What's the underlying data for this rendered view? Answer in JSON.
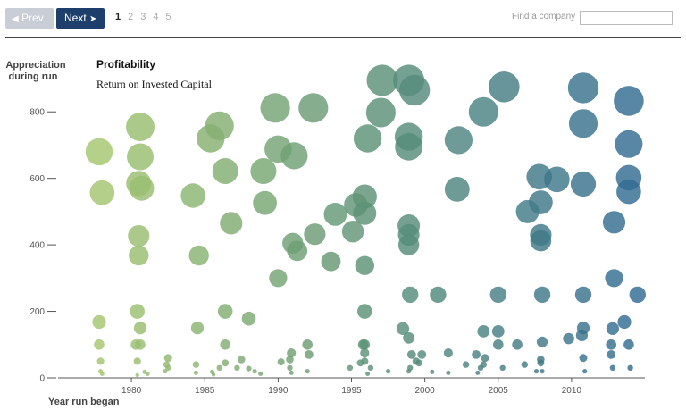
{
  "pagination": {
    "prev_label": "Prev",
    "next_label": "Next",
    "prev_icon": "triangle-left-icon",
    "next_icon": "arrow-right-icon",
    "pages": [
      "1",
      "2",
      "3",
      "4",
      "5"
    ],
    "current_page": "1"
  },
  "search": {
    "label": "Find a company",
    "value": "",
    "placeholder": ""
  },
  "colors": {
    "prev_bg": "#c9ced6",
    "next_bg": "#1e3f6b",
    "bubble_early": "#a7c86f",
    "bubble_mid": "#5d9276",
    "bubble_late": "#2f6a93"
  },
  "chart_data": {
    "type": "scatter",
    "title": "Profitability",
    "subtitle": "Return on Invested Capital",
    "xlabel": "Year run began",
    "ylabel_lines": [
      "Appreciation",
      "during run"
    ],
    "xlim": [
      1975,
      2015
    ],
    "ylim": [
      0,
      900
    ],
    "x_ticks": [
      1980,
      1985,
      1990,
      1995,
      2000,
      2005,
      2010
    ],
    "y_ticks": [
      0,
      200,
      400,
      600,
      800
    ],
    "grid": false,
    "size_encodes": "appreciation during run",
    "points": [
      {
        "x": 1977.8,
        "y": 680
      },
      {
        "x": 1978.0,
        "y": 557
      },
      {
        "x": 1980.6,
        "y": 755
      },
      {
        "x": 1980.6,
        "y": 665
      },
      {
        "x": 1980.5,
        "y": 585
      },
      {
        "x": 1980.7,
        "y": 570
      },
      {
        "x": 1980.5,
        "y": 427
      },
      {
        "x": 1980.5,
        "y": 368
      },
      {
        "x": 1984.2,
        "y": 548
      },
      {
        "x": 1984.6,
        "y": 368
      },
      {
        "x": 1985.4,
        "y": 720
      },
      {
        "x": 1986.0,
        "y": 758
      },
      {
        "x": 1986.4,
        "y": 622
      },
      {
        "x": 1986.8,
        "y": 465
      },
      {
        "x": 1989.0,
        "y": 622
      },
      {
        "x": 1989.1,
        "y": 526
      },
      {
        "x": 1989.8,
        "y": 812
      },
      {
        "x": 1990.0,
        "y": 688
      },
      {
        "x": 1991.1,
        "y": 668
      },
      {
        "x": 1992.4,
        "y": 812
      },
      {
        "x": 1990.0,
        "y": 300
      },
      {
        "x": 1991.0,
        "y": 405
      },
      {
        "x": 1991.3,
        "y": 382
      },
      {
        "x": 1992.5,
        "y": 432
      },
      {
        "x": 1993.6,
        "y": 350
      },
      {
        "x": 1993.9,
        "y": 492
      },
      {
        "x": 1995.1,
        "y": 440
      },
      {
        "x": 1995.3,
        "y": 520
      },
      {
        "x": 1995.9,
        "y": 545
      },
      {
        "x": 1995.9,
        "y": 495
      },
      {
        "x": 1995.9,
        "y": 338
      },
      {
        "x": 1996.1,
        "y": 720
      },
      {
        "x": 1997.1,
        "y": 895
      },
      {
        "x": 1997.0,
        "y": 798
      },
      {
        "x": 1998.9,
        "y": 895
      },
      {
        "x": 1999.3,
        "y": 865
      },
      {
        "x": 1998.9,
        "y": 725
      },
      {
        "x": 1998.9,
        "y": 695
      },
      {
        "x": 1998.9,
        "y": 458
      },
      {
        "x": 1998.9,
        "y": 430
      },
      {
        "x": 1998.9,
        "y": 400
      },
      {
        "x": 1999.0,
        "y": 250
      },
      {
        "x": 2000.9,
        "y": 250
      },
      {
        "x": 2002.3,
        "y": 715
      },
      {
        "x": 2002.2,
        "y": 567
      },
      {
        "x": 2004.0,
        "y": 800
      },
      {
        "x": 2005.4,
        "y": 875
      },
      {
        "x": 2005.0,
        "y": 250
      },
      {
        "x": 2007.0,
        "y": 500
      },
      {
        "x": 2007.8,
        "y": 605
      },
      {
        "x": 2007.9,
        "y": 528
      },
      {
        "x": 2007.9,
        "y": 430
      },
      {
        "x": 2007.9,
        "y": 412
      },
      {
        "x": 2008.0,
        "y": 250
      },
      {
        "x": 2009.0,
        "y": 597
      },
      {
        "x": 2010.8,
        "y": 872
      },
      {
        "x": 2010.8,
        "y": 765
      },
      {
        "x": 2010.8,
        "y": 583
      },
      {
        "x": 2010.8,
        "y": 250
      },
      {
        "x": 2012.9,
        "y": 468
      },
      {
        "x": 2012.9,
        "y": 300
      },
      {
        "x": 2013.9,
        "y": 833
      },
      {
        "x": 2013.9,
        "y": 703
      },
      {
        "x": 2013.9,
        "y": 602
      },
      {
        "x": 2013.9,
        "y": 560
      },
      {
        "x": 2014.5,
        "y": 250
      },
      {
        "x": 1977.8,
        "y": 168
      },
      {
        "x": 1977.8,
        "y": 100
      },
      {
        "x": 1977.9,
        "y": 50
      },
      {
        "x": 1977.9,
        "y": 20
      },
      {
        "x": 1978.0,
        "y": 12
      },
      {
        "x": 1980.4,
        "y": 200
      },
      {
        "x": 1980.6,
        "y": 150
      },
      {
        "x": 1980.3,
        "y": 100
      },
      {
        "x": 1980.6,
        "y": 100
      },
      {
        "x": 1980.4,
        "y": 50
      },
      {
        "x": 1980.9,
        "y": 18
      },
      {
        "x": 1981.1,
        "y": 12
      },
      {
        "x": 1980.4,
        "y": 8
      },
      {
        "x": 1982.5,
        "y": 60
      },
      {
        "x": 1982.4,
        "y": 40
      },
      {
        "x": 1982.5,
        "y": 30
      },
      {
        "x": 1982.3,
        "y": 20
      },
      {
        "x": 1984.5,
        "y": 150
      },
      {
        "x": 1984.4,
        "y": 40
      },
      {
        "x": 1984.4,
        "y": 15
      },
      {
        "x": 1985.5,
        "y": 18
      },
      {
        "x": 1986.0,
        "y": 30
      },
      {
        "x": 1985.6,
        "y": 10
      },
      {
        "x": 1986.4,
        "y": 200
      },
      {
        "x": 1986.4,
        "y": 100
      },
      {
        "x": 1986.4,
        "y": 45
      },
      {
        "x": 1987.2,
        "y": 30
      },
      {
        "x": 1987.5,
        "y": 55
      },
      {
        "x": 1988.0,
        "y": 28
      },
      {
        "x": 1988.4,
        "y": 20
      },
      {
        "x": 1988.8,
        "y": 12
      },
      {
        "x": 1988.0,
        "y": 178
      },
      {
        "x": 1990.2,
        "y": 48
      },
      {
        "x": 1990.8,
        "y": 55
      },
      {
        "x": 1990.9,
        "y": 75
      },
      {
        "x": 1990.8,
        "y": 30
      },
      {
        "x": 1990.9,
        "y": 15
      },
      {
        "x": 1992.0,
        "y": 100
      },
      {
        "x": 1992.1,
        "y": 70
      },
      {
        "x": 1992.0,
        "y": 20
      },
      {
        "x": 1994.9,
        "y": 30
      },
      {
        "x": 1995.8,
        "y": 100
      },
      {
        "x": 1995.9,
        "y": 100
      },
      {
        "x": 1995.9,
        "y": 75
      },
      {
        "x": 1995.9,
        "y": 50
      },
      {
        "x": 1995.6,
        "y": 45
      },
      {
        "x": 1995.9,
        "y": 200
      },
      {
        "x": 1996.3,
        "y": 30
      },
      {
        "x": 1996.1,
        "y": 12
      },
      {
        "x": 1997.5,
        "y": 20
      },
      {
        "x": 1998.5,
        "y": 148
      },
      {
        "x": 1998.9,
        "y": 120
      },
      {
        "x": 1999.1,
        "y": 70
      },
      {
        "x": 1999.4,
        "y": 50
      },
      {
        "x": 1999.6,
        "y": 45
      },
      {
        "x": 1999.0,
        "y": 30
      },
      {
        "x": 1998.9,
        "y": 20
      },
      {
        "x": 1999.8,
        "y": 70
      },
      {
        "x": 2000.5,
        "y": 18
      },
      {
        "x": 2001.6,
        "y": 75
      },
      {
        "x": 2001.6,
        "y": 15
      },
      {
        "x": 2002.8,
        "y": 40
      },
      {
        "x": 2003.5,
        "y": 70
      },
      {
        "x": 2003.8,
        "y": 30
      },
      {
        "x": 2003.6,
        "y": 15
      },
      {
        "x": 2004.0,
        "y": 140
      },
      {
        "x": 2004.1,
        "y": 60
      },
      {
        "x": 2004.0,
        "y": 40
      },
      {
        "x": 2005.0,
        "y": 140
      },
      {
        "x": 2005.0,
        "y": 100
      },
      {
        "x": 2005.3,
        "y": 30
      },
      {
        "x": 2006.3,
        "y": 100
      },
      {
        "x": 2006.8,
        "y": 40
      },
      {
        "x": 2007.6,
        "y": 20
      },
      {
        "x": 2008.0,
        "y": 108
      },
      {
        "x": 2007.9,
        "y": 55
      },
      {
        "x": 2007.9,
        "y": 45
      },
      {
        "x": 2008.0,
        "y": 20
      },
      {
        "x": 2009.8,
        "y": 118
      },
      {
        "x": 2010.8,
        "y": 150
      },
      {
        "x": 2010.7,
        "y": 128
      },
      {
        "x": 2010.8,
        "y": 60
      },
      {
        "x": 2010.9,
        "y": 20
      },
      {
        "x": 2012.8,
        "y": 148
      },
      {
        "x": 2012.7,
        "y": 100
      },
      {
        "x": 2012.7,
        "y": 70
      },
      {
        "x": 2012.8,
        "y": 30
      },
      {
        "x": 2013.6,
        "y": 168
      },
      {
        "x": 2013.9,
        "y": 100
      },
      {
        "x": 2014.0,
        "y": 30
      }
    ]
  }
}
